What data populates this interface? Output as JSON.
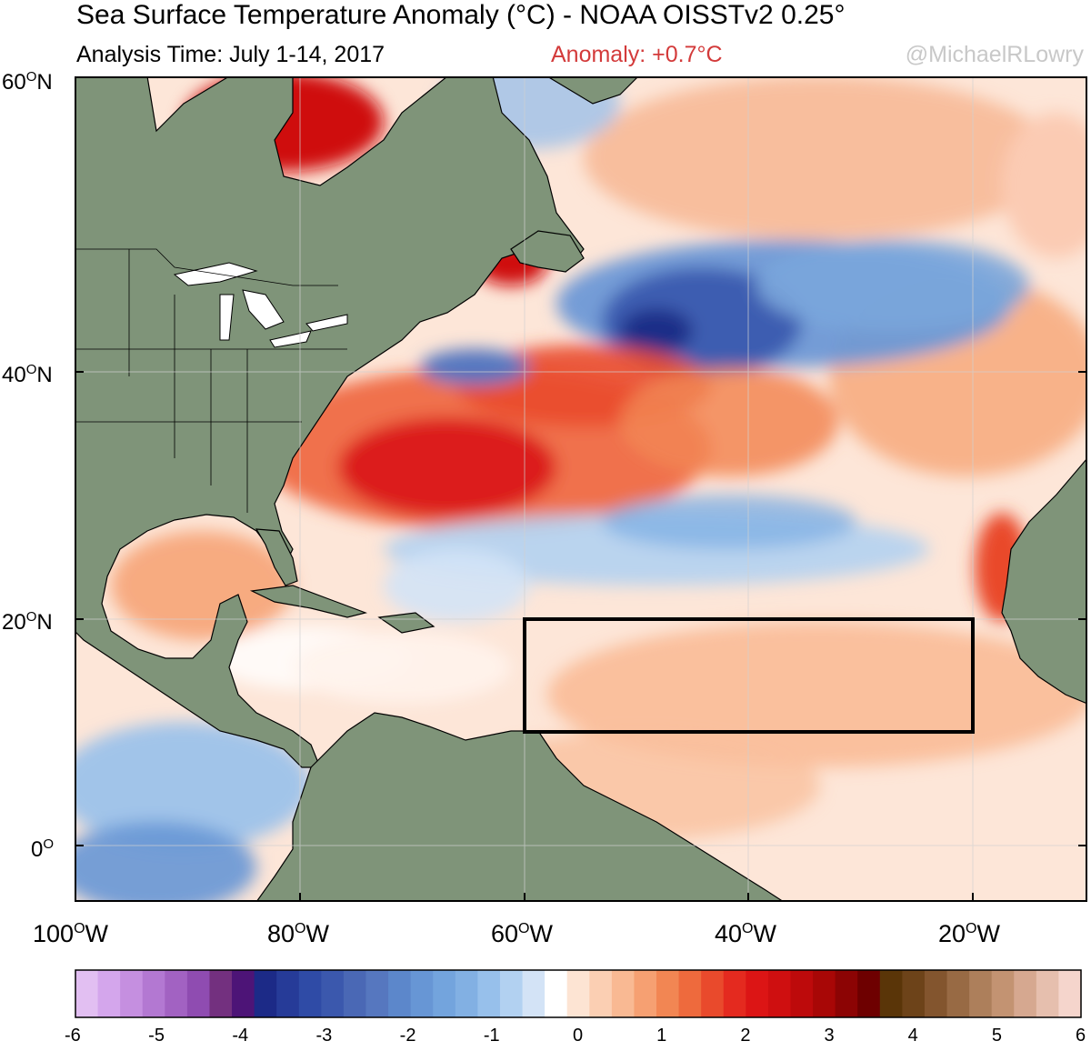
{
  "header": {
    "title": "Sea Surface Temperature Anomaly (°C) - NOAA OISSTv2 0.25°",
    "analysis_time": "Analysis Time: July 1-14, 2017",
    "anomaly": "Anomaly: +0.7°C",
    "credit": "@MichaelRLowry"
  },
  "map": {
    "lat_labels": [
      "60",
      "40",
      "20",
      "0"
    ],
    "lat_suffixes": [
      "N",
      "N",
      "N",
      ""
    ],
    "lon_labels": [
      "100",
      "80",
      "60",
      "40",
      "20"
    ],
    "lon_suffix": "W",
    "degree_mark": "O",
    "highlight_box": {
      "lon_west": -60,
      "lon_east": -20,
      "lat_south": 10,
      "lat_north": 20
    },
    "colors": {
      "land": "#7f9479",
      "ocean_neutral": "#ffffff",
      "box": "#000000"
    }
  },
  "colorbar": {
    "ticks": [
      "-6",
      "-5",
      "-4",
      "-3",
      "-2",
      "-1",
      "0",
      "1",
      "2",
      "3",
      "4",
      "5",
      "6"
    ],
    "colors": [
      "#e2bff2",
      "#d4a6ec",
      "#c58fe0",
      "#b378d2",
      "#a262c2",
      "#8f4cb1",
      "#73307f",
      "#4d1477",
      "#1c2a87",
      "#263b98",
      "#2f4ba6",
      "#3b58ad",
      "#4a68b5",
      "#5677bf",
      "#5c87cb",
      "#6796d5",
      "#73a4dd",
      "#82b0e3",
      "#97c0eb",
      "#b2d1f1",
      "#d3e3f6",
      "#ffffff",
      "#fde4d3",
      "#fbcfb3",
      "#f9b993",
      "#f6a072",
      "#f28653",
      "#ee6a3d",
      "#e94a2c",
      "#e42a1f",
      "#dc1515",
      "#cf0f10",
      "#bd0a0b",
      "#a80706",
      "#8c0404",
      "#6e0000",
      "#5a3508",
      "#6d4319",
      "#83552e",
      "#986a44",
      "#ad7f5b",
      "#c39372",
      "#d6a890",
      "#e6bfae",
      "#f5d5cc"
    ]
  }
}
